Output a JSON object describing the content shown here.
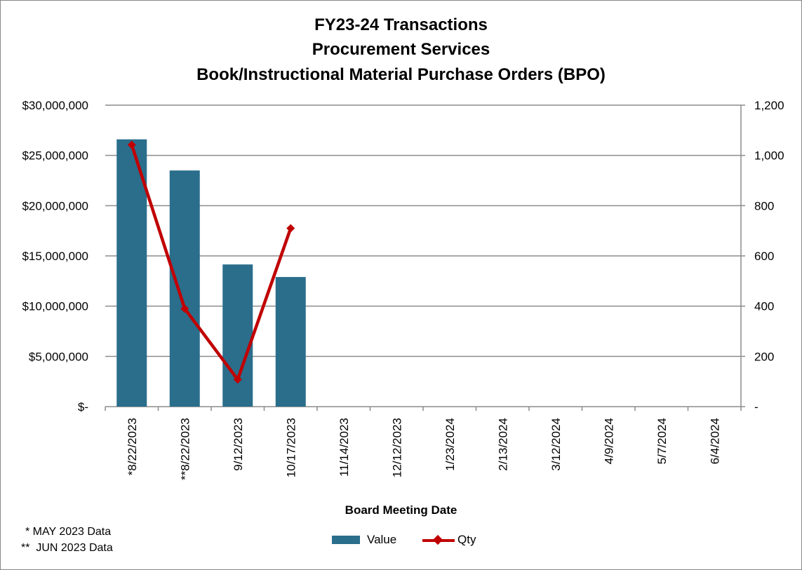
{
  "chart_data": {
    "type": "bar",
    "title_lines": [
      "FY23-24 Transactions",
      "Procurement Services",
      "Book/Instructional Material Purchase Orders (BPO)"
    ],
    "xlabel": "Board Meeting Date",
    "categories": [
      "*8/22/2023",
      "**8/22/2023",
      "9/12/2023",
      "10/17/2023",
      "11/14/2023",
      "12/12/2023",
      "1/23/2024",
      "2/13/2024",
      "3/12/2024",
      "4/9/2024",
      "5/7/2024",
      "6/4/2024"
    ],
    "series": [
      {
        "name": "Value",
        "axis": "left",
        "type": "bar",
        "color": "#2a6e8c",
        "values": [
          26600000,
          23500000,
          14150000,
          12900000,
          null,
          null,
          null,
          null,
          null,
          null,
          null,
          null
        ]
      },
      {
        "name": "Qty",
        "axis": "right",
        "type": "line",
        "marker": "diamond",
        "color": "#c00000",
        "values": [
          1042,
          390,
          108,
          710,
          null,
          null,
          null,
          null,
          null,
          null,
          null,
          null
        ]
      }
    ],
    "y_left": {
      "lim": [
        0,
        30000000
      ],
      "ticks": [
        0,
        5000000,
        10000000,
        15000000,
        20000000,
        25000000,
        30000000
      ],
      "tick_labels": [
        "$-",
        "$5,000,000",
        "$10,000,000",
        "$15,000,000",
        "$20,000,000",
        "$25,000,000",
        "$30,000,000"
      ]
    },
    "y_right": {
      "lim": [
        0,
        1200
      ],
      "ticks": [
        0,
        200,
        400,
        600,
        800,
        1000,
        1200
      ],
      "tick_labels": [
        "-",
        "200",
        "400",
        "600",
        "800",
        "1,000",
        "1,200"
      ]
    },
    "grid": true,
    "legend_position": "bottom",
    "legend": [
      "Value",
      "Qty"
    ],
    "footnotes": [
      "* MAY 2023 Data",
      "**  JUN 2023 Data"
    ]
  }
}
